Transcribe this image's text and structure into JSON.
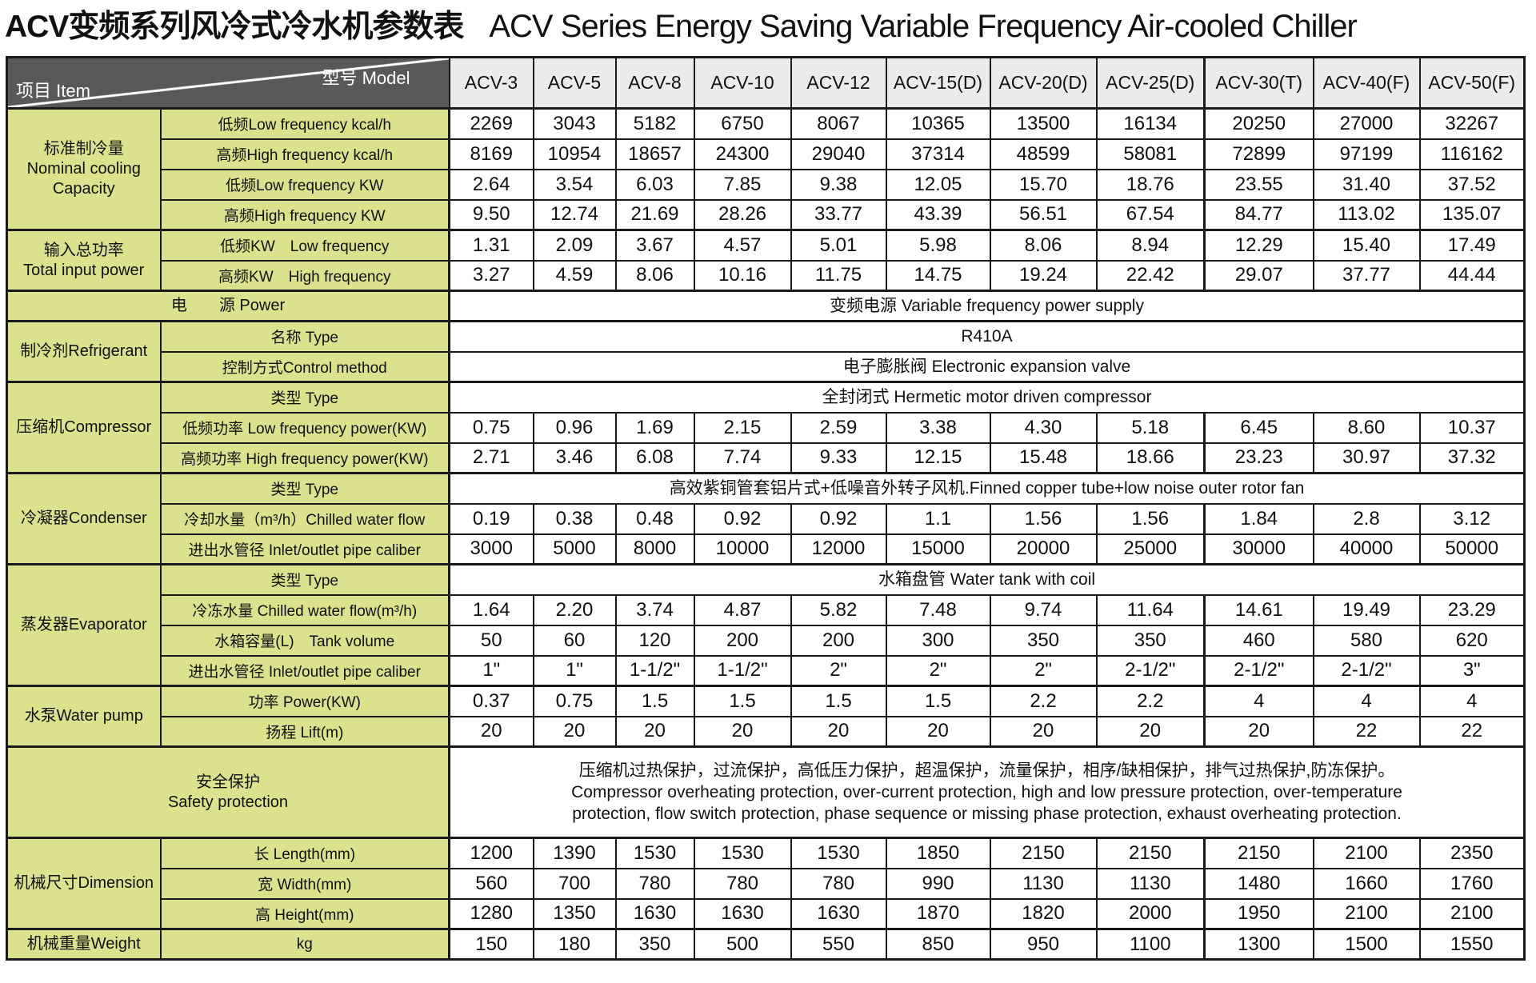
{
  "title": {
    "zh": "ACV变频系列风冷式冷水机参数表",
    "en": "ACV Series Energy Saving Variable Frequency Air-cooled Chiller"
  },
  "colors": {
    "label_green": "#dbe18c",
    "header_dark": "#595959",
    "header_light": "#ebebeb",
    "border": "#1a1a1a"
  },
  "table": {
    "corner": {
      "model_label": "型号  Model",
      "item_label": "项目  Item"
    },
    "models": [
      "ACV-3",
      "ACV-5",
      "ACV-8",
      "ACV-10",
      "ACV-12",
      "ACV-15(D)",
      "ACV-20(D)",
      "ACV-25(D)",
      "ACV-30(T)",
      "ACV-40(F)",
      "ACV-50(F)"
    ],
    "sections": [
      {
        "group": [
          "标准制冷量",
          "Nominal cooling",
          "Capacity"
        ],
        "rows": [
          {
            "label": "低频Low frequency  kcal/h",
            "values": [
              "2269",
              "3043",
              "5182",
              "6750",
              "8067",
              "10365",
              "13500",
              "16134",
              "20250",
              "27000",
              "32267"
            ]
          },
          {
            "label": "高频High frequency  kcal/h",
            "values": [
              "8169",
              "10954",
              "18657",
              "24300",
              "29040",
              "37314",
              "48599",
              "58081",
              "72899",
              "97199",
              "116162"
            ]
          },
          {
            "label": "低频Low frequency  KW",
            "values": [
              "2.64",
              "3.54",
              "6.03",
              "7.85",
              "9.38",
              "12.05",
              "15.70",
              "18.76",
              "23.55",
              "31.40",
              "37.52"
            ]
          },
          {
            "label": "高频High frequency  KW",
            "values": [
              "9.50",
              "12.74",
              "21.69",
              "28.26",
              "33.77",
              "43.39",
              "56.51",
              "67.54",
              "84.77",
              "113.02",
              "135.07"
            ]
          }
        ]
      },
      {
        "group": [
          "输入总功率",
          "Total input power"
        ],
        "rows": [
          {
            "label": "低频KW　Low frequency",
            "values": [
              "1.31",
              "2.09",
              "3.67",
              "4.57",
              "5.01",
              "5.98",
              "8.06",
              "8.94",
              "12.29",
              "15.40",
              "17.49"
            ]
          },
          {
            "label": "高频KW　High frequency",
            "values": [
              "3.27",
              "4.59",
              "8.06",
              "10.16",
              "11.75",
              "14.75",
              "19.24",
              "22.42",
              "29.07",
              "37.77",
              "44.44"
            ]
          }
        ]
      },
      {
        "group": null,
        "rows": [
          {
            "label": "电　　源  Power",
            "wide": true,
            "span": "变频电源 Variable frequency power supply"
          }
        ]
      },
      {
        "group": [
          "制冷剂Refrigerant"
        ],
        "rows": [
          {
            "label": "名称  Type",
            "span": "R410A"
          },
          {
            "label": "控制方式Control method",
            "span": "电子膨胀阀 Electronic expansion valve"
          }
        ]
      },
      {
        "group": [
          "压缩机Compressor"
        ],
        "rows": [
          {
            "label": "类型 Type",
            "span": "全封闭式 Hermetic motor driven compressor"
          },
          {
            "label": "低频功率  Low frequency power(KW)",
            "values": [
              "0.75",
              "0.96",
              "1.69",
              "2.15",
              "2.59",
              "3.38",
              "4.30",
              "5.18",
              "6.45",
              "8.60",
              "10.37"
            ]
          },
          {
            "label": "高频功率 High frequency power(KW)",
            "values": [
              "2.71",
              "3.46",
              "6.08",
              "7.74",
              "9.33",
              "12.15",
              "15.48",
              "18.66",
              "23.23",
              "30.97",
              "37.32"
            ]
          }
        ]
      },
      {
        "group": [
          "冷凝器Condenser"
        ],
        "rows": [
          {
            "label": "类型 Type",
            "span": "高效紫铜管套铝片式+低噪音外转子风机.Finned copper tube+low noise outer rotor fan"
          },
          {
            "label": "冷却水量（m³/h）Chilled water flow",
            "values": [
              "0.19",
              "0.38",
              "0.48",
              "0.92",
              "0.92",
              "1.1",
              "1.56",
              "1.56",
              "1.84",
              "2.8",
              "3.12"
            ]
          },
          {
            "label": "进出水管径 Inlet/outlet pipe caliber",
            "values": [
              "3000",
              "5000",
              "8000",
              "10000",
              "12000",
              "15000",
              "20000",
              "25000",
              "30000",
              "40000",
              "50000"
            ]
          }
        ]
      },
      {
        "group": [
          "蒸发器Evaporator"
        ],
        "rows": [
          {
            "label": "类型 Type",
            "span": "水箱盘管 Water tank with coil"
          },
          {
            "label": "冷冻水量 Chilled water flow(m³/h)",
            "values": [
              "1.64",
              "2.20",
              "3.74",
              "4.87",
              "5.82",
              "7.48",
              "9.74",
              "11.64",
              "14.61",
              "19.49",
              "23.29"
            ]
          },
          {
            "label": "水箱容量(L)　Tank volume",
            "values": [
              "50",
              "60",
              "120",
              "200",
              "200",
              "300",
              "350",
              "350",
              "460",
              "580",
              "620"
            ]
          },
          {
            "label": "进出水管径  Inlet/outlet pipe caliber",
            "values": [
              "1\"",
              "1\"",
              "1-1/2\"",
              "1-1/2\"",
              "2\"",
              "2\"",
              "2\"",
              "2-1/2\"",
              "2-1/2\"",
              "2-1/2\"",
              "3\""
            ]
          }
        ]
      },
      {
        "group": [
          "水泵Water pump"
        ],
        "rows": [
          {
            "label": "功率  Power(KW)",
            "values": [
              "0.37",
              "0.75",
              "1.5",
              "1.5",
              "1.5",
              "1.5",
              "2.2",
              "2.2",
              "4",
              "4",
              "4"
            ]
          },
          {
            "label": "扬程  Lift(m)",
            "values": [
              "20",
              "20",
              "20",
              "20",
              "20",
              "20",
              "20",
              "20",
              "20",
              "22",
              "22"
            ]
          }
        ]
      },
      {
        "group": null,
        "rows": [
          {
            "label": [
              "安全保护",
              "Safety protection"
            ],
            "wide": true,
            "span": [
              "压缩机过热保护，过流保护，高低压力保护，超温保护，流量保护，相序/缺相保护，排气过热保护,防冻保护。",
              "Compressor overheating protection, over-current protection, high and low pressure protection, over-temperature",
              "protection, flow switch protection, phase sequence or missing phase protection, exhaust overheating protection."
            ]
          }
        ]
      },
      {
        "group": [
          "机械尺寸Dimension"
        ],
        "rows": [
          {
            "label": "长  Length(mm)",
            "values": [
              "1200",
              "1390",
              "1530",
              "1530",
              "1530",
              "1850",
              "2150",
              "2150",
              "2150",
              "2100",
              "2350"
            ]
          },
          {
            "label": "宽  Width(mm)",
            "values": [
              "560",
              "700",
              "780",
              "780",
              "780",
              "990",
              "1130",
              "1130",
              "1480",
              "1660",
              "1760"
            ]
          },
          {
            "label": "高  Height(mm)",
            "values": [
              "1280",
              "1350",
              "1630",
              "1630",
              "1630",
              "1870",
              "1820",
              "2000",
              "1950",
              "2100",
              "2100"
            ]
          }
        ]
      },
      {
        "group": [
          "机械重量Weight"
        ],
        "rows": [
          {
            "label": "kg",
            "values": [
              "150",
              "180",
              "350",
              "500",
              "550",
              "850",
              "950",
              "1100",
              "1300",
              "1500",
              "1550"
            ]
          }
        ]
      }
    ]
  }
}
